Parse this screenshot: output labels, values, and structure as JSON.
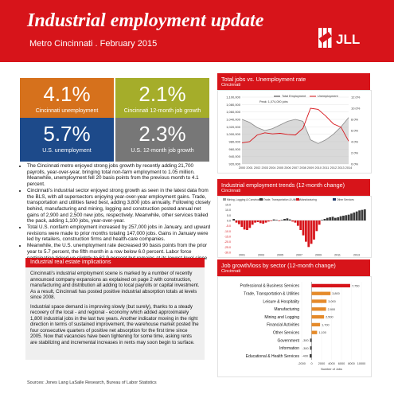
{
  "header": {
    "title": "Industrial employment update",
    "subtitle": "Metro Cincinnati . February 2015",
    "logo_text": "JLL"
  },
  "stats": [
    {
      "value": "4.1%",
      "label": "Cincinnati unemployment",
      "color": "#d6711c"
    },
    {
      "value": "2.1%",
      "label": "Cincinnati 12-month job growth",
      "color": "#a5ad2a"
    },
    {
      "value": "5.7%",
      "label": "U.S. unemployment",
      "color": "#1d4a8a"
    },
    {
      "value": "2.3%",
      "label": "U.S. 12-month job growth",
      "color": "#777777"
    }
  ],
  "bullets": [
    "The Cincinnati metro enjoyed strong jobs growth by recently adding 21,700 payrolls, year-over-year, bringing total non-farm employment to 1.05 million. Meanwhile, unemployment fell 20 basis points from the previous month to 4.1 percent.",
    "Cincinnati’s industrial sector enjoyed strong growth as seen in the latest data from the BLS, with all supersectors enjoying year-over-year employment gains. Trade, transportation and utilities fared best, adding 3,800 jobs annually. Following closely behind, manufacturing and mining, logging and construction posted annual net gains of 2,900 and 2,500 new jobs, respectively. Meanwhile, other services trailed the pack, adding 1,100 jobs, year-over-year.",
    "Total U.S. nonfarm employment increased by 257,000 jobs in January, and upward revisions were made to prior months totaling 147,000 jobs. Gains in January were led by retailers, construction firms and health-care companies.",
    "Meanwhile, the U.S. unemployment rate decreased 90 basis points from the prior year to 5.7 percent, the fifth month in a row below 6.0 percent. Labor force participation ticked up slightly to 62.9 percent but remains at its lowest level since 1978."
  ],
  "real_estate": {
    "heading": "Industrial real estate implications",
    "paragraphs": [
      "Cincinnati’s industrial employment scene is marked by a number of recently announced company expansions as explained on page 2 with construction, manufacturing and distribution all adding to local payrolls or capital investment. As a result, Cincinnati has posted positive industrial absorption totals at levels since 2008.",
      "Industrial space demand is improving slowly (but surely), thanks to a steady recovery of the local - and regional - economy which added approximately 1,800 industrial jobs in the last two years. Another indicator moving in the right direction in terms of sustained improvement, the warehouse market posted the four consecutive quarters of positive net absorption for the first time since 2005. Now that vacancies have been tightening for some time, asking rents are stabilizing and incremental increases in rents may soon begin to surface."
    ]
  },
  "sources": "Sources: Jones Lang LaSalle Research, Bureau of Labor Statistics",
  "colors": {
    "brand_red": "#d7141a",
    "navy": "#1f3a6b",
    "gray": "#9a9a9a",
    "orange": "#e58a2a"
  },
  "chart_data": [
    {
      "type": "line",
      "title": "Total jobs vs. Unemployment rate",
      "subtitle": "Cincinnati",
      "legend": [
        "Total Employment",
        "Unemployment"
      ],
      "peak_label": "Peak: 1,074,000 jobs",
      "ylabels_left": [
        "1,100,000",
        "1,080,000",
        "1,060,000",
        "1,040,000",
        "1,020,000",
        "1,000,000",
        "980,000",
        "960,000",
        "940,000",
        "920,000"
      ],
      "ylabels_right": [
        "12.0%",
        "10.0%",
        "8.0%",
        "6.0%",
        "4.0%",
        "2.0%",
        "0.0%"
      ],
      "x": [
        "2000",
        "2001",
        "2002",
        "2003",
        "2004",
        "2005",
        "2006",
        "2007",
        "2008",
        "2009",
        "2010",
        "2011",
        "2012",
        "2013",
        "2014"
      ],
      "employment": [
        1040000,
        1032000,
        1018000,
        1010000,
        1015000,
        1025000,
        1035000,
        1040000,
        1035000,
        985000,
        975000,
        985000,
        1000000,
        1020000,
        1045000
      ],
      "unemployment": [
        3.8,
        4.0,
        5.2,
        5.6,
        5.4,
        5.5,
        5.3,
        5.2,
        6.4,
        10.0,
        9.8,
        8.6,
        7.2,
        6.6,
        4.1
      ],
      "ylim_left": [
        920000,
        1100000
      ],
      "ylim_right": [
        0,
        12
      ]
    },
    {
      "type": "bar",
      "title": "Industrial employment trends (12-month change)",
      "subtitle": "Cincinnati",
      "legend": [
        "Mining, Logging & Construction",
        "Trade, Transportation & Utilities",
        "Manufacturing",
        "Other Services"
      ],
      "ylabels": [
        "15.0",
        "10.0",
        "5.0",
        "0.0",
        "-5.0",
        "-10.0",
        "-15.0",
        "-20.0",
        "-25.0",
        "-30.0"
      ],
      "xlabels": [
        "2001",
        "2003",
        "2005",
        "2007",
        "2009",
        "2011",
        "2013"
      ],
      "ylim": [
        -30,
        15
      ],
      "net_change": [
        1.5,
        -2.0,
        -3.5,
        -6.0,
        -8.5,
        -9.0,
        -7.0,
        -4.0,
        -2.0,
        -1.5,
        -2.5,
        -3.0,
        -2.0,
        -1.0,
        -0.5,
        1.0,
        0.5,
        -0.5,
        0.5,
        1.5,
        2.0,
        1.0,
        -1.0,
        -2.0,
        -5.0,
        -9.0,
        -14.0,
        -20.0,
        -25.0,
        -22.0,
        -18.0,
        -10.0,
        -4.0,
        0.5,
        1.5,
        2.5,
        3.0,
        3.5,
        2.5,
        3.0,
        4.0,
        4.5,
        5.0,
        5.5,
        6.5,
        7.5,
        8.5,
        9.5,
        10.0,
        10.5
      ]
    },
    {
      "type": "bar",
      "title": "Job growth/loss by sector (12-month change)",
      "subtitle": "Cincinnati",
      "categories": [
        "Professional & Business Services",
        "Trade, Transportation & Utilities",
        "Leisure & Hospitality",
        "Manufacturing",
        "Mining and Logging",
        "Financial Activities",
        "Other Services",
        "Government",
        "Information",
        "Educational & Health Services"
      ],
      "values": [
        7750,
        3800,
        3000,
        2900,
        2500,
        1700,
        1100,
        -300,
        -300,
        -400
      ],
      "value_labels": [
        "7,750",
        "3,800",
        "3,000",
        "2,900",
        "2,500",
        "1,700",
        "1,100",
        "-300",
        "-300",
        "-400"
      ],
      "xticks": [
        "-2000",
        "0",
        "2000",
        "4000",
        "6000",
        "8000",
        "10000"
      ],
      "xlabel": "Number of Jobs",
      "xlim": [
        -2000,
        10000
      ]
    }
  ]
}
